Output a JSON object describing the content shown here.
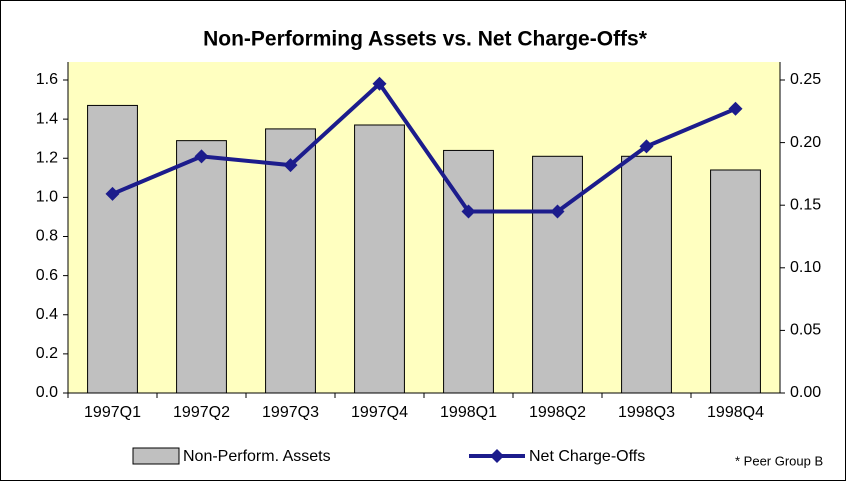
{
  "chart_data": {
    "type": "bar-line",
    "title": "Non-Performing Assets vs. Net Charge-Offs*",
    "footnote": "* Peer Group B",
    "categories": [
      "1997Q1",
      "1997Q2",
      "1997Q3",
      "1997Q4",
      "1998Q1",
      "1998Q2",
      "1998Q3",
      "1998Q4"
    ],
    "series": [
      {
        "name": "Non-Perform. Assets",
        "type": "bar",
        "color": "#c0c0c0",
        "values": [
          1.47,
          1.29,
          1.35,
          1.37,
          1.24,
          1.21,
          1.21,
          1.14
        ]
      },
      {
        "name": "Net Charge-Offs",
        "type": "line",
        "axis": "y2",
        "color": "#1c1c8c",
        "values": [
          0.159,
          0.189,
          0.182,
          0.247,
          0.145,
          0.145,
          0.197,
          0.227
        ]
      }
    ],
    "ylim": [
      0,
      1.6
    ],
    "yticks": [
      {
        "value": 0,
        "label": "0.0"
      },
      0.2,
      0.4,
      0.6,
      0.8,
      {
        "value": 1,
        "label": "1.0"
      },
      1.2,
      1.4,
      1.6
    ],
    "y2lim": [
      0,
      0.25
    ],
    "y2ticks": [
      {
        "value": 0,
        "label": "0.00"
      },
      0.05,
      {
        "value": 0.1,
        "label": "0.10"
      },
      0.15,
      {
        "value": 0.2,
        "label": "0.20"
      },
      0.25
    ],
    "background": "#ffffc0"
  }
}
